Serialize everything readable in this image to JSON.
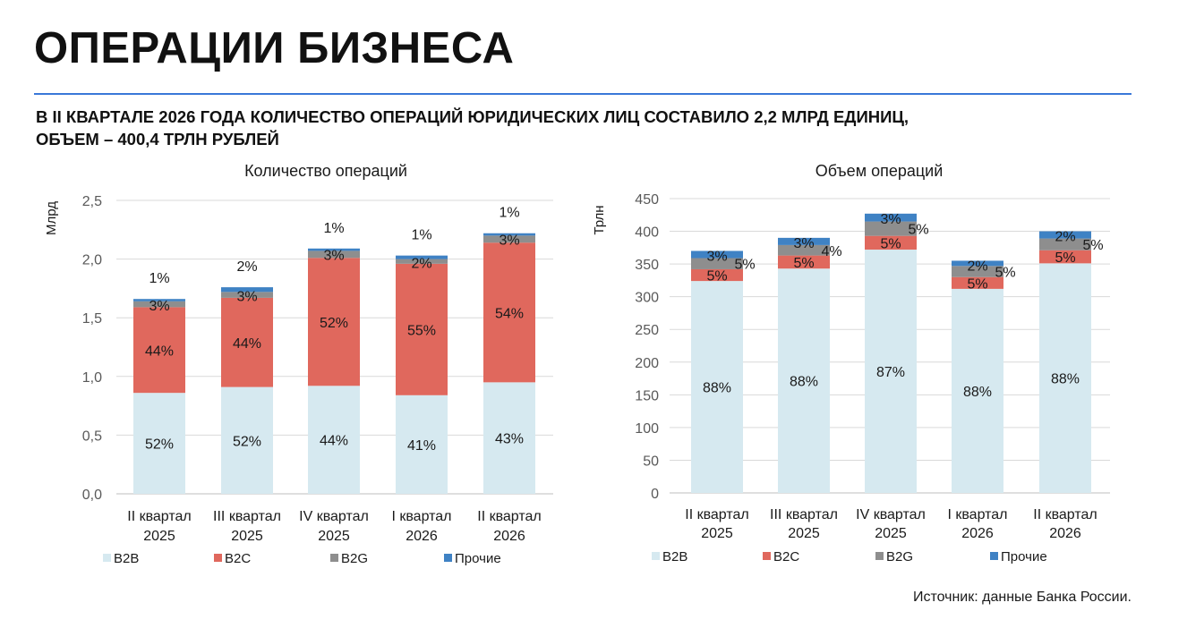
{
  "page_title": "ОПЕРАЦИИ БИЗНЕСА",
  "subtitle_line1": "В II КВАРТАЛЕ 2026 ГОДА КОЛИЧЕСТВО ОПЕРАЦИЙ ЮРИДИЧЕСКИХ ЛИЦ СОСТАВИЛО 2,2 МЛРД ЕДИНИЦ,",
  "subtitle_line2": "ОБЪЕМ – 400,4 ТРЛН РУБЛЕЙ",
  "source": "Источник: данные Банка России.",
  "colors": {
    "accent_rule": "#3a78d8",
    "b2b": "#d6e9f0",
    "b2c": "#e0685d",
    "b2g": "#8e8e8e",
    "other": "#3f82c4",
    "grid": "#d9d9d9"
  },
  "chart_data": [
    {
      "type": "bar",
      "stacked": true,
      "title": "Количество операций",
      "ylabel": "Млрд",
      "xlabel": "",
      "ylim": [
        0,
        2.5
      ],
      "yticks": [
        "0,0",
        "0,5",
        "1,0",
        "1,5",
        "2,0",
        "2,5"
      ],
      "categories": [
        [
          "II квартал",
          "2025"
        ],
        [
          "III квартал",
          "2025"
        ],
        [
          "IV квартал",
          "2025"
        ],
        [
          "I квартал",
          "2026"
        ],
        [
          "II квартал",
          "2026"
        ]
      ],
      "series": [
        {
          "name": "B2B",
          "color": "#d6e9f0",
          "values": [
            0.86,
            0.91,
            0.92,
            0.84,
            0.95
          ],
          "labels": [
            "52%",
            "52%",
            "44%",
            "41%",
            "43%"
          ]
        },
        {
          "name": "B2C",
          "color": "#e0685d",
          "values": [
            0.73,
            0.76,
            1.09,
            1.12,
            1.19
          ],
          "labels": [
            "44%",
            "44%",
            "52%",
            "55%",
            "54%"
          ]
        },
        {
          "name": "B2G",
          "color": "#8e8e8e",
          "values": [
            0.05,
            0.05,
            0.06,
            0.04,
            0.06
          ],
          "labels": [
            "3%",
            "3%",
            "3%",
            "2%",
            "3%"
          ]
        },
        {
          "name": "Прочие",
          "color": "#3f82c4",
          "values": [
            0.02,
            0.04,
            0.02,
            0.03,
            0.02
          ],
          "labels": [
            "1%",
            "2%",
            "1%",
            "1%",
            "1%"
          ]
        }
      ],
      "legend_position": "bottom"
    },
    {
      "type": "bar",
      "stacked": true,
      "title": "Объем операций",
      "ylabel": "Трлн",
      "xlabel": "",
      "ylim": [
        0,
        450
      ],
      "yticks": [
        "0",
        "50",
        "100",
        "150",
        "200",
        "250",
        "300",
        "350",
        "400",
        "450"
      ],
      "categories": [
        [
          "II квартал",
          "2025"
        ],
        [
          "III квартал",
          "2025"
        ],
        [
          "IV квартал",
          "2025"
        ],
        [
          "I квартал",
          "2026"
        ],
        [
          "II квартал",
          "2026"
        ]
      ],
      "series": [
        {
          "name": "B2B",
          "color": "#d6e9f0",
          "values": [
            324,
            343,
            372,
            312,
            351
          ],
          "labels": [
            "88%",
            "88%",
            "87%",
            "88%",
            "88%"
          ]
        },
        {
          "name": "B2C",
          "color": "#e0685d",
          "values": [
            18,
            20,
            21,
            18,
            20
          ],
          "labels": [
            "5%",
            "5%",
            "5%",
            "5%",
            "5%"
          ]
        },
        {
          "name": "B2G",
          "color": "#8e8e8e",
          "values": [
            17,
            16,
            22,
            17,
            18
          ],
          "labels": [
            "5%",
            "4%",
            "5%",
            "5%",
            "5%"
          ]
        },
        {
          "name": "Прочие",
          "color": "#3f82c4",
          "values": [
            11,
            11,
            12,
            8,
            11
          ],
          "labels": [
            "3%",
            "3%",
            "3%",
            "2%",
            "2%"
          ]
        }
      ],
      "legend_position": "bottom"
    }
  ]
}
